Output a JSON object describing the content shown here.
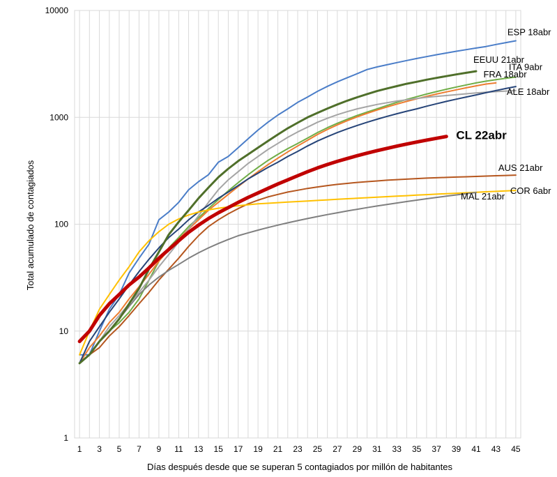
{
  "chart_data": {
    "type": "line",
    "xlabel": "Días después desde que se superan 5 contagiados por millón de habitantes",
    "ylabel": "Total acumulado de contagiados",
    "xlim": [
      0.5,
      45.5
    ],
    "ylim": [
      1,
      10000
    ],
    "y_scale": "log",
    "grid": true,
    "legend": "none",
    "x_ticks": [
      1,
      3,
      5,
      7,
      9,
      11,
      13,
      15,
      17,
      19,
      21,
      23,
      25,
      27,
      29,
      31,
      33,
      35,
      37,
      39,
      41,
      43,
      45
    ],
    "y_ticks": [
      1,
      10,
      100,
      1000,
      10000
    ],
    "y_tick_labels": [
      "1",
      "10",
      "100",
      "1000",
      "10000"
    ],
    "series": [
      {
        "name": "ESP 18abr",
        "color": "#4a7dc8",
        "width": 2,
        "x": [
          1,
          2,
          3,
          4,
          5,
          6,
          7,
          8,
          9,
          10,
          11,
          12,
          13,
          14,
          15,
          16,
          17,
          18,
          19,
          20,
          21,
          22,
          23,
          24,
          25,
          26,
          27,
          28,
          29,
          30,
          31,
          32,
          33,
          34,
          35,
          36,
          37,
          38,
          39,
          40,
          41,
          42,
          43,
          44,
          45
        ],
        "values": [
          6,
          6,
          10,
          16,
          22,
          35,
          48,
          65,
          110,
          130,
          160,
          210,
          250,
          290,
          380,
          430,
          520,
          630,
          760,
          900,
          1050,
          1200,
          1380,
          1550,
          1750,
          1950,
          2150,
          2350,
          2560,
          2800,
          2960,
          3100,
          3250,
          3400,
          3550,
          3700,
          3850,
          4000,
          4150,
          4300,
          4450,
          4600,
          4800,
          5000,
          5200
        ]
      },
      {
        "name": "EEUU 21abr",
        "color": "#4f6f2a",
        "width": 3,
        "x": [
          1,
          2,
          3,
          4,
          5,
          6,
          7,
          8,
          9,
          10,
          11,
          12,
          13,
          14,
          15,
          16,
          17,
          18,
          19,
          20,
          21,
          22,
          23,
          24,
          25,
          26,
          27,
          28,
          29,
          30,
          31,
          32,
          33,
          34,
          35,
          36,
          37,
          38,
          39,
          40,
          41
        ],
        "values": [
          5,
          6,
          8,
          10,
          13,
          18,
          25,
          38,
          55,
          80,
          105,
          135,
          175,
          220,
          275,
          330,
          390,
          450,
          520,
          600,
          690,
          790,
          890,
          1000,
          1100,
          1210,
          1320,
          1430,
          1540,
          1650,
          1760,
          1860,
          1960,
          2060,
          2150,
          2250,
          2340,
          2430,
          2520,
          2610,
          2700
        ]
      },
      {
        "name": "ITA 9abr",
        "color": "#70ad47",
        "width": 2,
        "x": [
          1,
          2,
          3,
          4,
          5,
          6,
          7,
          8,
          9,
          10,
          11,
          12,
          13,
          14,
          15,
          16,
          17,
          18,
          19,
          20,
          21,
          22,
          23,
          24,
          25,
          26,
          27,
          28,
          29,
          30,
          31,
          32,
          33,
          34,
          35,
          36,
          37,
          38,
          39,
          40,
          41,
          42,
          43,
          44,
          45
        ],
        "values": [
          5,
          6,
          8,
          10,
          12,
          15,
          20,
          30,
          45,
          60,
          75,
          95,
          115,
          140,
          170,
          205,
          245,
          290,
          340,
          395,
          450,
          510,
          570,
          640,
          720,
          800,
          880,
          960,
          1040,
          1120,
          1200,
          1290,
          1380,
          1470,
          1560,
          1650,
          1740,
          1830,
          1920,
          2010,
          2100,
          2180,
          2250,
          2320,
          2380
        ]
      },
      {
        "name": "FRA 18abr",
        "color": "#ed7d31",
        "width": 2,
        "x": [
          1,
          2,
          3,
          4,
          5,
          6,
          7,
          8,
          9,
          10,
          11,
          12,
          13,
          14,
          15,
          16,
          17,
          18,
          19,
          20,
          21,
          22,
          23,
          24,
          25,
          26,
          27,
          28,
          29,
          30,
          31,
          32,
          33,
          34,
          35,
          36,
          37,
          38,
          39,
          40,
          41,
          42,
          43
        ],
        "values": [
          5,
          7,
          9,
          12,
          15,
          20,
          26,
          34,
          45,
          58,
          72,
          90,
          110,
          135,
          160,
          190,
          225,
          265,
          310,
          360,
          415,
          475,
          540,
          610,
          690,
          770,
          850,
          930,
          1010,
          1090,
          1170,
          1250,
          1330,
          1410,
          1490,
          1570,
          1650,
          1730,
          1810,
          1890,
          1970,
          2050,
          2100
        ]
      },
      {
        "name": "ALE 18abr",
        "color": "#a5a5a5",
        "width": 2,
        "x": [
          1,
          2,
          3,
          4,
          5,
          6,
          7,
          8,
          9,
          10,
          11,
          12,
          13,
          14,
          15,
          16,
          17,
          18,
          19,
          20,
          21,
          22,
          23,
          24,
          25,
          26,
          27,
          28,
          29,
          30,
          31,
          32,
          33,
          34,
          35,
          36,
          37,
          38,
          39,
          40,
          41,
          42,
          43,
          44,
          45
        ],
        "values": [
          5,
          6,
          8,
          11,
          14,
          18,
          23,
          30,
          40,
          52,
          68,
          90,
          120,
          160,
          210,
          260,
          310,
          370,
          430,
          500,
          570,
          650,
          730,
          810,
          900,
          980,
          1060,
          1130,
          1200,
          1260,
          1320,
          1370,
          1420,
          1460,
          1500,
          1540,
          1570,
          1600,
          1630,
          1660,
          1690,
          1720,
          1740,
          1760,
          1780
        ]
      },
      {
        "name": "",
        "color": "#264478",
        "width": 2,
        "x": [
          1,
          2,
          3,
          4,
          5,
          6,
          7,
          8,
          9,
          10,
          11,
          12,
          13,
          14,
          15,
          16,
          17,
          18,
          19,
          20,
          21,
          22,
          23,
          24,
          25,
          26,
          27,
          28,
          29,
          30,
          31,
          32,
          33,
          34,
          35,
          36,
          37,
          38,
          39,
          40,
          41,
          42,
          43,
          44,
          45
        ],
        "values": [
          5,
          8,
          11,
          15,
          20,
          27,
          36,
          47,
          60,
          75,
          90,
          110,
          130,
          150,
          175,
          200,
          230,
          265,
          300,
          340,
          380,
          430,
          480,
          540,
          600,
          660,
          720,
          780,
          840,
          900,
          960,
          1020,
          1080,
          1140,
          1200,
          1270,
          1340,
          1410,
          1480,
          1550,
          1620,
          1700,
          1780,
          1860,
          1940
        ]
      },
      {
        "name": "AUS 21abr",
        "color": "#b5561e",
        "width": 2,
        "x": [
          1,
          2,
          3,
          4,
          5,
          6,
          7,
          8,
          9,
          10,
          11,
          12,
          13,
          14,
          15,
          16,
          17,
          18,
          19,
          20,
          21,
          22,
          23,
          24,
          25,
          26,
          27,
          28,
          29,
          30,
          31,
          32,
          33,
          34,
          35,
          36,
          37,
          38,
          39,
          40,
          41,
          42,
          43,
          44,
          45
        ],
        "values": [
          5,
          6,
          7,
          9,
          11,
          14,
          18,
          23,
          30,
          38,
          48,
          62,
          78,
          95,
          110,
          125,
          140,
          155,
          168,
          180,
          190,
          200,
          208,
          216,
          223,
          230,
          236,
          241,
          246,
          250,
          254,
          258,
          261,
          264,
          267,
          270,
          272,
          274,
          276,
          278,
          280,
          282,
          284,
          286,
          288
        ]
      },
      {
        "name": "COR 6abr",
        "color": "#ffc000",
        "width": 2,
        "x": [
          1,
          2,
          3,
          4,
          5,
          6,
          7,
          8,
          9,
          10,
          11,
          12,
          13,
          14,
          15,
          16,
          17,
          18,
          19,
          20,
          21,
          22,
          23,
          24,
          25,
          26,
          27,
          28,
          29,
          30,
          31,
          32,
          33,
          34,
          35,
          36,
          37,
          38,
          39,
          40,
          41,
          42,
          43,
          44,
          45
        ],
        "values": [
          6,
          10,
          16,
          22,
          30,
          40,
          55,
          70,
          85,
          100,
          112,
          122,
          130,
          136,
          141,
          145,
          149,
          152,
          155,
          157,
          159,
          161,
          163,
          165,
          167,
          169,
          171,
          173,
          175,
          177,
          179,
          181,
          183,
          185,
          187,
          189,
          191,
          193,
          195,
          197,
          199,
          201,
          203,
          205,
          207
        ]
      },
      {
        "name": "MAL 21abr",
        "color": "#7f7f7f",
        "width": 2,
        "x": [
          1,
          2,
          3,
          4,
          5,
          6,
          7,
          8,
          9,
          10,
          11,
          12,
          13,
          14,
          15,
          16,
          17,
          18,
          19,
          20,
          21,
          22,
          23,
          24,
          25,
          26,
          27,
          28,
          29,
          30,
          31,
          32,
          33,
          34,
          35,
          36,
          37,
          38,
          39,
          40,
          41
        ],
        "values": [
          5,
          6,
          8,
          10,
          13,
          17,
          22,
          27,
          32,
          37,
          42,
          48,
          54,
          60,
          66,
          72,
          78,
          83,
          88,
          93,
          98,
          103,
          108,
          113,
          118,
          123,
          128,
          133,
          138,
          143,
          148,
          153,
          158,
          163,
          168,
          173,
          178,
          183,
          188,
          193,
          198
        ]
      },
      {
        "name": "CL 22abr",
        "color": "#c00000",
        "width": 5,
        "x": [
          1,
          2,
          3,
          4,
          5,
          6,
          7,
          8,
          9,
          10,
          11,
          12,
          13,
          14,
          15,
          16,
          17,
          18,
          19,
          20,
          21,
          22,
          23,
          24,
          25,
          26,
          27,
          28,
          29,
          30,
          31,
          32,
          33,
          34,
          35,
          36,
          37,
          38
        ],
        "values": [
          8,
          10,
          14,
          18,
          22,
          27,
          32,
          39,
          48,
          58,
          70,
          84,
          98,
          113,
          128,
          143,
          160,
          178,
          196,
          216,
          238,
          260,
          284,
          310,
          336,
          362,
          387,
          412,
          437,
          462,
          487,
          512,
          537,
          562,
          587,
          612,
          637,
          662
        ]
      }
    ]
  }
}
